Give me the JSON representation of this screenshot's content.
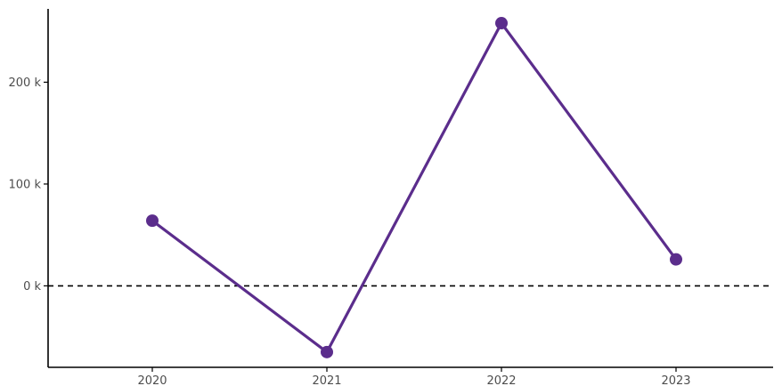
{
  "chart_data": {
    "type": "line",
    "x": [
      "2020",
      "2021",
      "2022",
      "2023"
    ],
    "series": [
      {
        "values": [
          64000,
          -65000,
          258000,
          26000
        ]
      }
    ],
    "ylim": [
      -80000,
      272000
    ],
    "y_ticks": [
      {
        "value": 0,
        "label": "0 k"
      },
      {
        "value": 100000,
        "label": "100 k"
      },
      {
        "value": 200000,
        "label": "200 k"
      }
    ],
    "reference_line": {
      "value": 0,
      "style": "dashed"
    },
    "colors": {
      "series": "#5b2d8c",
      "axis": "#000000",
      "reference": "#000000"
    },
    "grid": false,
    "legend": "none"
  }
}
